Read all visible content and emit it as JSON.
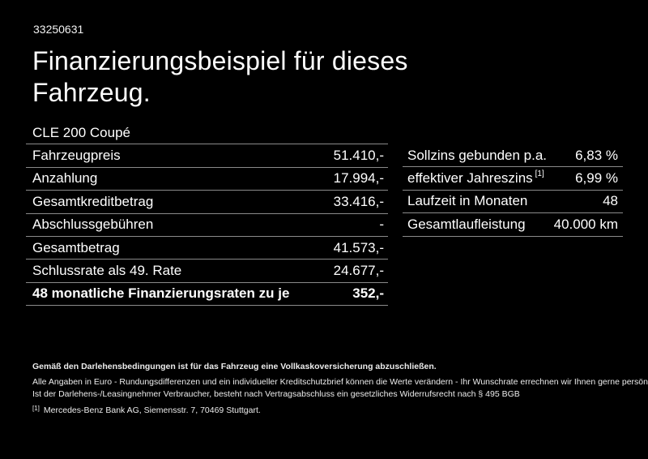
{
  "colors": {
    "background": "#000000",
    "text": "#ffffff",
    "divider": "#8a8a8a"
  },
  "header": {
    "doc_number": "33250631",
    "title_line1": "Finanzierungsbeispiel für dieses",
    "title_line2": "Fahrzeug."
  },
  "vehicle": {
    "model": "CLE 200 Coupé"
  },
  "financing_table": {
    "rows": [
      {
        "label": "Fahrzeugpreis",
        "value": "51.410,-"
      },
      {
        "label": "Anzahlung",
        "value": "17.994,-"
      },
      {
        "label": "Gesamtkreditbetrag",
        "value": "33.416,-"
      },
      {
        "label": "Abschlussgebühren",
        "value": "-"
      },
      {
        "label": "Gesamtbetrag",
        "value": "41.573,-"
      },
      {
        "label": "Schlussrate als 49. Rate",
        "value": "24.677,-"
      },
      {
        "label": "48 monatliche Finanzierungsraten zu je",
        "value": "352,-"
      }
    ]
  },
  "conditions_table": {
    "rows": [
      {
        "label": "Sollzins gebunden p.a.",
        "sup": "",
        "value": "6,83 %"
      },
      {
        "label": "effektiver Jahreszins",
        "sup": "[1]",
        "value": "6,99 %"
      },
      {
        "label": "Laufzeit in Monaten",
        "sup": "",
        "value": "48"
      },
      {
        "label": "Gesamtlaufleistung",
        "sup": "",
        "value": "40.000 km"
      }
    ]
  },
  "footer": {
    "insurance_note": "Gemäß den Darlehensbedingungen ist für das Fahrzeug eine Vollkaskoversicherung abzuschließen.",
    "note_line1": "Alle Angaben in Euro - Rundungsdifferenzen und ein individueller Kreditschutzbrief können die Werte verändern - Ihr Wunschrate errechnen wir Ihnen gerne persönlich",
    "note_line2": "Ist der Darlehens-/Leasingnehmer Verbraucher, besteht nach Vertragsabschluss ein gesetzliches Widerrufsrecht nach § 495 BGB",
    "footnote_marker": "[1]",
    "footnote_text": "Mercedes-Benz Bank AG, Siemensstr. 7, 70469 Stuttgart."
  }
}
